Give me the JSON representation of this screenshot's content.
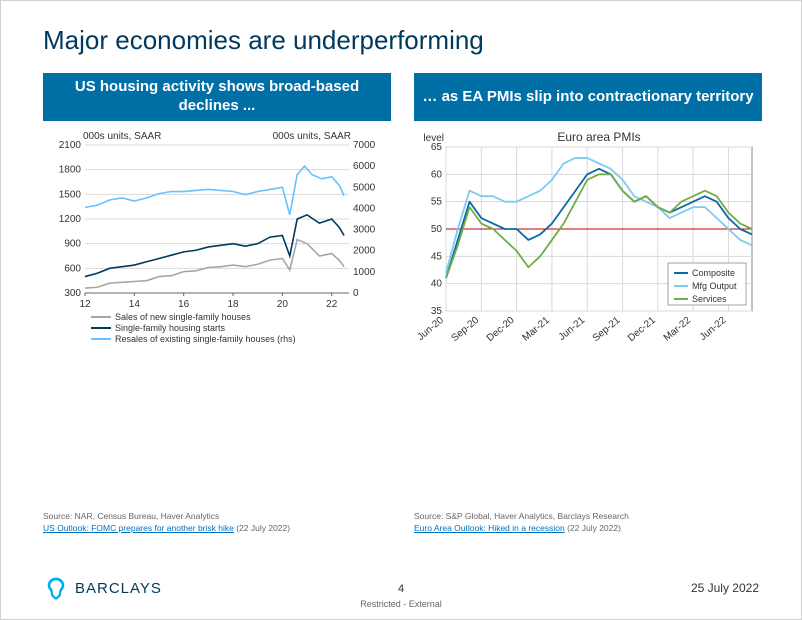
{
  "title": "Major economies are underperforming",
  "left_header": "US housing activity shows broad-based declines ...",
  "right_header": "… as EA PMIs slip into contractionary territory",
  "left_chart": {
    "type": "line",
    "y_left_label": "000s units, SAAR",
    "y_right_label": "000s units, SAAR",
    "x_ticks_labels": [
      "12",
      "14",
      "16",
      "18",
      "20",
      "22"
    ],
    "x_ticks_numeric": [
      2012,
      2014,
      2016,
      2018,
      2020,
      2022
    ],
    "x_domain": [
      2012,
      2022.7
    ],
    "y_left_ticks": [
      300,
      600,
      900,
      1200,
      1500,
      1800,
      2100
    ],
    "y_left_domain": [
      300,
      2100
    ],
    "y_right_ticks": [
      0,
      1000,
      2000,
      3000,
      4000,
      5000,
      6000,
      7000
    ],
    "y_right_domain": [
      0,
      7000
    ],
    "grid_color": "#d9d9d9",
    "axis_color": "#666666",
    "plot_bg": "#ffffff",
    "line_width": 1.6,
    "series": [
      {
        "name": "Sales of new single-family houses",
        "color": "#a6a6a6",
        "axis": "left",
        "data": [
          [
            2012.0,
            360
          ],
          [
            2012.5,
            370
          ],
          [
            2013.0,
            420
          ],
          [
            2013.5,
            430
          ],
          [
            2014.0,
            440
          ],
          [
            2014.5,
            450
          ],
          [
            2015.0,
            500
          ],
          [
            2015.5,
            510
          ],
          [
            2016.0,
            560
          ],
          [
            2016.5,
            570
          ],
          [
            2017.0,
            610
          ],
          [
            2017.5,
            620
          ],
          [
            2018.0,
            640
          ],
          [
            2018.5,
            620
          ],
          [
            2019.0,
            650
          ],
          [
            2019.5,
            700
          ],
          [
            2020.0,
            720
          ],
          [
            2020.3,
            580
          ],
          [
            2020.6,
            950
          ],
          [
            2021.0,
            900
          ],
          [
            2021.5,
            750
          ],
          [
            2022.0,
            780
          ],
          [
            2022.3,
            700
          ],
          [
            2022.5,
            620
          ]
        ]
      },
      {
        "name": "Single-family housing starts",
        "color": "#003a5d",
        "axis": "left",
        "data": [
          [
            2012.0,
            500
          ],
          [
            2012.5,
            540
          ],
          [
            2013.0,
            600
          ],
          [
            2013.5,
            620
          ],
          [
            2014.0,
            640
          ],
          [
            2014.5,
            680
          ],
          [
            2015.0,
            720
          ],
          [
            2015.5,
            760
          ],
          [
            2016.0,
            800
          ],
          [
            2016.5,
            820
          ],
          [
            2017.0,
            860
          ],
          [
            2017.5,
            880
          ],
          [
            2018.0,
            900
          ],
          [
            2018.5,
            870
          ],
          [
            2019.0,
            900
          ],
          [
            2019.5,
            980
          ],
          [
            2020.0,
            1000
          ],
          [
            2020.3,
            750
          ],
          [
            2020.6,
            1200
          ],
          [
            2021.0,
            1250
          ],
          [
            2021.5,
            1150
          ],
          [
            2022.0,
            1200
          ],
          [
            2022.3,
            1100
          ],
          [
            2022.5,
            1000
          ]
        ]
      },
      {
        "name": "Resales of existing single-family houses (rhs)",
        "color": "#66c2ff",
        "axis": "right",
        "data": [
          [
            2012.0,
            4050
          ],
          [
            2012.5,
            4150
          ],
          [
            2013.0,
            4400
          ],
          [
            2013.5,
            4500
          ],
          [
            2014.0,
            4350
          ],
          [
            2014.5,
            4500
          ],
          [
            2015.0,
            4700
          ],
          [
            2015.5,
            4800
          ],
          [
            2016.0,
            4800
          ],
          [
            2016.5,
            4850
          ],
          [
            2017.0,
            4900
          ],
          [
            2017.5,
            4850
          ],
          [
            2018.0,
            4800
          ],
          [
            2018.5,
            4650
          ],
          [
            2019.0,
            4800
          ],
          [
            2019.5,
            4900
          ],
          [
            2020.0,
            5000
          ],
          [
            2020.3,
            3700
          ],
          [
            2020.6,
            5600
          ],
          [
            2020.9,
            6000
          ],
          [
            2021.2,
            5600
          ],
          [
            2021.6,
            5400
          ],
          [
            2022.0,
            5500
          ],
          [
            2022.3,
            5100
          ],
          [
            2022.5,
            4600
          ]
        ]
      }
    ],
    "legend_items": [
      {
        "label": "Sales of new single-family houses",
        "color": "#a6a6a6"
      },
      {
        "label": "Single-family housing starts",
        "color": "#003a5d"
      },
      {
        "label": "Resales of existing single-family houses (rhs)",
        "color": "#66c2ff"
      }
    ]
  },
  "right_chart": {
    "type": "line",
    "title": "Euro area PMIs",
    "y_label": "level",
    "x_ticks_labels": [
      "Jun-20",
      "Sep-20",
      "Dec-20",
      "Mar-21",
      "Jun-21",
      "Sep-21",
      "Dec-21",
      "Mar-22",
      "Jun-22"
    ],
    "x_ticks_numeric": [
      0,
      3,
      6,
      9,
      12,
      15,
      18,
      21,
      24
    ],
    "x_domain": [
      0,
      26
    ],
    "y_ticks": [
      35,
      40,
      45,
      50,
      55,
      60,
      65
    ],
    "y_domain": [
      35,
      65
    ],
    "grid_color": "#d9d9d9",
    "axis_color": "#666666",
    "plot_bg": "#ffffff",
    "line_width": 1.8,
    "ref_line": {
      "y": 50,
      "color": "#c00000",
      "width": 1
    },
    "series": [
      {
        "name": "Composite",
        "color": "#0a6aa6",
        "data": [
          [
            0,
            41
          ],
          [
            1,
            48
          ],
          [
            2,
            55
          ],
          [
            3,
            52
          ],
          [
            4,
            51
          ],
          [
            5,
            50
          ],
          [
            6,
            50
          ],
          [
            7,
            48
          ],
          [
            8,
            49
          ],
          [
            9,
            51
          ],
          [
            10,
            54
          ],
          [
            11,
            57
          ],
          [
            12,
            60
          ],
          [
            13,
            61
          ],
          [
            14,
            60
          ],
          [
            15,
            57
          ],
          [
            16,
            55
          ],
          [
            17,
            56
          ],
          [
            18,
            54
          ],
          [
            19,
            53
          ],
          [
            20,
            54
          ],
          [
            21,
            55
          ],
          [
            22,
            56
          ],
          [
            23,
            55
          ],
          [
            24,
            52
          ],
          [
            25,
            50
          ],
          [
            26,
            49
          ]
        ]
      },
      {
        "name": "Mfg Output",
        "color": "#7fc9f2",
        "data": [
          [
            0,
            42
          ],
          [
            1,
            50
          ],
          [
            2,
            57
          ],
          [
            3,
            56
          ],
          [
            4,
            56
          ],
          [
            5,
            55
          ],
          [
            6,
            55
          ],
          [
            7,
            56
          ],
          [
            8,
            57
          ],
          [
            9,
            59
          ],
          [
            10,
            62
          ],
          [
            11,
            63
          ],
          [
            12,
            63
          ],
          [
            13,
            62
          ],
          [
            14,
            61
          ],
          [
            15,
            59
          ],
          [
            16,
            56
          ],
          [
            17,
            55
          ],
          [
            18,
            54
          ],
          [
            19,
            52
          ],
          [
            20,
            53
          ],
          [
            21,
            54
          ],
          [
            22,
            54
          ],
          [
            23,
            52
          ],
          [
            24,
            50
          ],
          [
            25,
            48
          ],
          [
            26,
            47
          ]
        ]
      },
      {
        "name": "Services",
        "color": "#70ad47",
        "data": [
          [
            0,
            41
          ],
          [
            1,
            47
          ],
          [
            2,
            54
          ],
          [
            3,
            51
          ],
          [
            4,
            50
          ],
          [
            5,
            48
          ],
          [
            6,
            46
          ],
          [
            7,
            43
          ],
          [
            8,
            45
          ],
          [
            9,
            48
          ],
          [
            10,
            51
          ],
          [
            11,
            55
          ],
          [
            12,
            59
          ],
          [
            13,
            60
          ],
          [
            14,
            60
          ],
          [
            15,
            57
          ],
          [
            16,
            55
          ],
          [
            17,
            56
          ],
          [
            18,
            54
          ],
          [
            19,
            53
          ],
          [
            20,
            55
          ],
          [
            21,
            56
          ],
          [
            22,
            57
          ],
          [
            23,
            56
          ],
          [
            24,
            53
          ],
          [
            25,
            51
          ],
          [
            26,
            50
          ]
        ]
      }
    ],
    "legend_items": [
      {
        "label": "Composite",
        "color": "#0a6aa6"
      },
      {
        "label": "Mfg Output",
        "color": "#7fc9f2"
      },
      {
        "label": "Services",
        "color": "#70ad47"
      }
    ]
  },
  "source_left_line1": "Source: NAR, Census Bureau, Haver Analytics",
  "source_left_link": "US Outlook: FOMC prepares for another brisk hike",
  "source_left_suffix": " (22 July 2022)",
  "source_right_line1": "Source: S&P Global, Haver Analytics, Barclays Research",
  "source_right_link": "Euro Area Outlook: Hiked in a recession",
  "source_right_suffix": " (22 July 2022)",
  "page_number": "4",
  "footer_restriction": "Restricted - External",
  "date": "25 July 2022",
  "logo_text": "BARCLAYS",
  "logo_color": "#00aeef"
}
